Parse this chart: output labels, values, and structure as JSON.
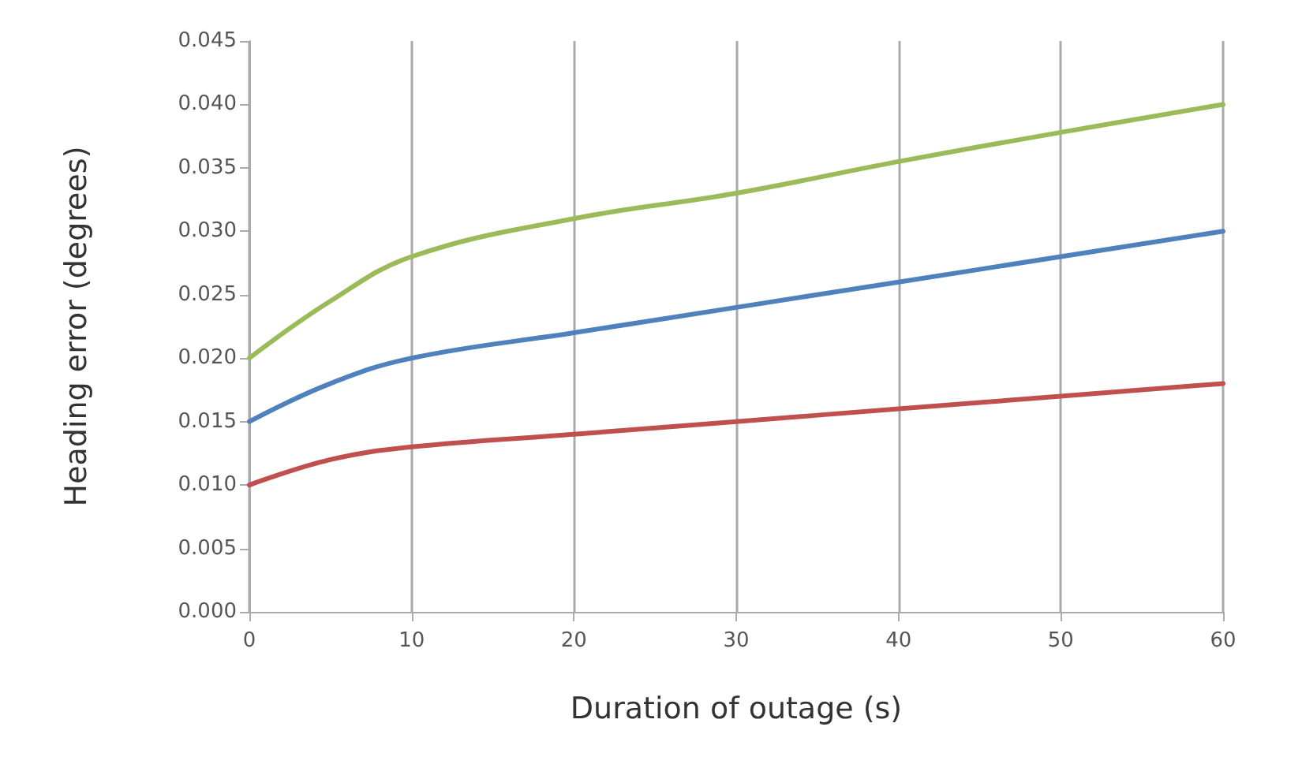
{
  "chart_data": {
    "type": "line",
    "xlabel": "Duration of outage (s)",
    "ylabel": "Heading error (degrees)",
    "x": [
      0,
      5,
      10,
      20,
      30,
      40,
      50,
      60
    ],
    "series": [
      {
        "color": "#9bbb59",
        "values": [
          0.02,
          0.0245,
          0.028,
          0.031,
          0.033,
          0.0355,
          0.0378,
          0.04
        ]
      },
      {
        "color": "#4f81bd",
        "values": [
          0.015,
          0.018,
          0.02,
          0.022,
          0.024,
          0.026,
          0.028,
          0.03
        ]
      },
      {
        "color": "#c0504d",
        "values": [
          0.01,
          0.012,
          0.013,
          0.014,
          0.015,
          0.016,
          0.017,
          0.018
        ]
      }
    ],
    "xlim": [
      0,
      60
    ],
    "xticks": [
      0,
      10,
      20,
      30,
      40,
      50,
      60
    ],
    "ylim": [
      0,
      0.045
    ],
    "yticks": [
      {
        "value": 0,
        "label": "0.000"
      },
      {
        "value": 0.005,
        "label": "0.005"
      },
      {
        "value": 0.01,
        "label": "0.010"
      },
      {
        "value": 0.015,
        "label": "0.015"
      },
      {
        "value": 0.02,
        "label": "0.020"
      },
      {
        "value": 0.025,
        "label": "0.025"
      },
      {
        "value": 0.03,
        "label": "0.030"
      },
      {
        "value": 0.035,
        "label": "0.035"
      },
      {
        "value": 0.04,
        "label": "0.040"
      },
      {
        "value": 0.045,
        "label": "0.045"
      }
    ],
    "grid": "x",
    "marker": "none",
    "line_style": "solid"
  }
}
